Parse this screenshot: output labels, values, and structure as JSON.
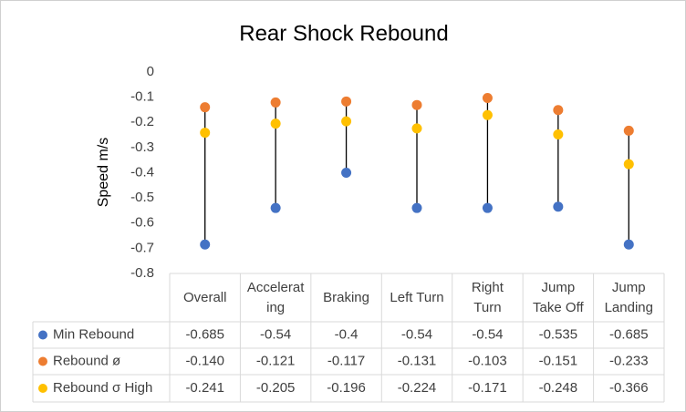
{
  "chart_data": {
    "type": "dot",
    "title": "Rear Shock Rebound",
    "y_label": "Speed m/s",
    "categories": [
      "Overall",
      "Accelerating",
      "Braking",
      "Left Turn",
      "Right Turn",
      "Jump Take Off",
      "Jump Landing"
    ],
    "series": [
      {
        "name": "Min Rebound",
        "color": "#4472c4",
        "values": [
          -0.685,
          -0.54,
          -0.4,
          -0.54,
          -0.54,
          -0.535,
          -0.685
        ]
      },
      {
        "name": "Rebound ø",
        "color": "#ed7d31",
        "values": [
          -0.14,
          -0.121,
          -0.117,
          -0.131,
          -0.103,
          -0.151,
          -0.233
        ],
        "value_labels": [
          "-0.140",
          "-0.121",
          "-0.117",
          "-0.131",
          "-0.103",
          "-0.151",
          "-0.233"
        ]
      },
      {
        "name": "Rebound σ High",
        "color": "#ffc000",
        "values": [
          -0.241,
          -0.205,
          -0.196,
          -0.224,
          -0.171,
          -0.248,
          -0.366
        ]
      }
    ],
    "ylim": [
      -0.8,
      0
    ],
    "yticks": [
      0,
      -0.1,
      -0.2,
      -0.3,
      -0.4,
      -0.5,
      -0.6,
      -0.7,
      -0.8
    ],
    "grid": false
  }
}
